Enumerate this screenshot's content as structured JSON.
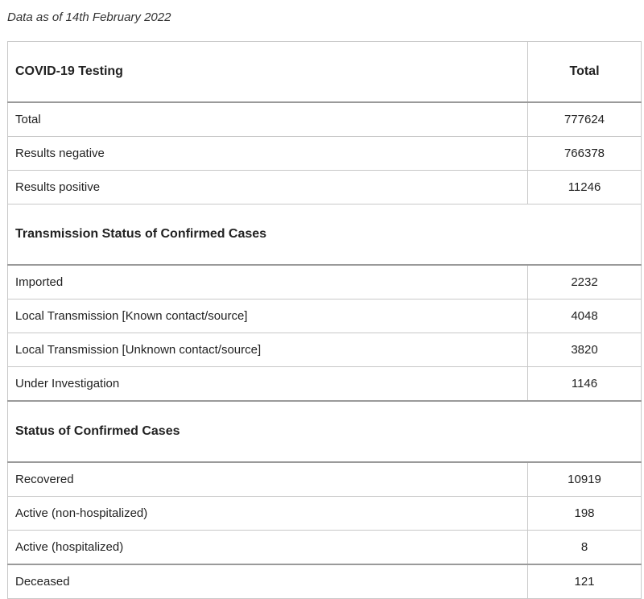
{
  "caption": "Data as of 14th February 2022",
  "header": {
    "label": "COVID-19 Testing",
    "value_label": "Total"
  },
  "testing": [
    {
      "label": "Total",
      "value": "777624"
    },
    {
      "label": "Results negative",
      "value": "766378"
    },
    {
      "label": "Results positive",
      "value": "11246"
    }
  ],
  "transmission": {
    "title": "Transmission Status of Confirmed Cases",
    "rows": [
      {
        "label": "Imported",
        "value": "2232"
      },
      {
        "label": "Local Transmission [Known contact/source]",
        "value": "4048"
      },
      {
        "label": "Local Transmission [Unknown contact/source]",
        "value": "3820"
      },
      {
        "label": "Under Investigation",
        "value": "1146"
      }
    ]
  },
  "status": {
    "title": "Status of Confirmed Cases",
    "rows": [
      {
        "label": "Recovered",
        "value": "10919"
      },
      {
        "label": "Active (non-hospitalized)",
        "value": "198"
      },
      {
        "label": "Active (hospitalized)",
        "value": "8"
      },
      {
        "label": "Deceased",
        "value": "121"
      }
    ]
  }
}
